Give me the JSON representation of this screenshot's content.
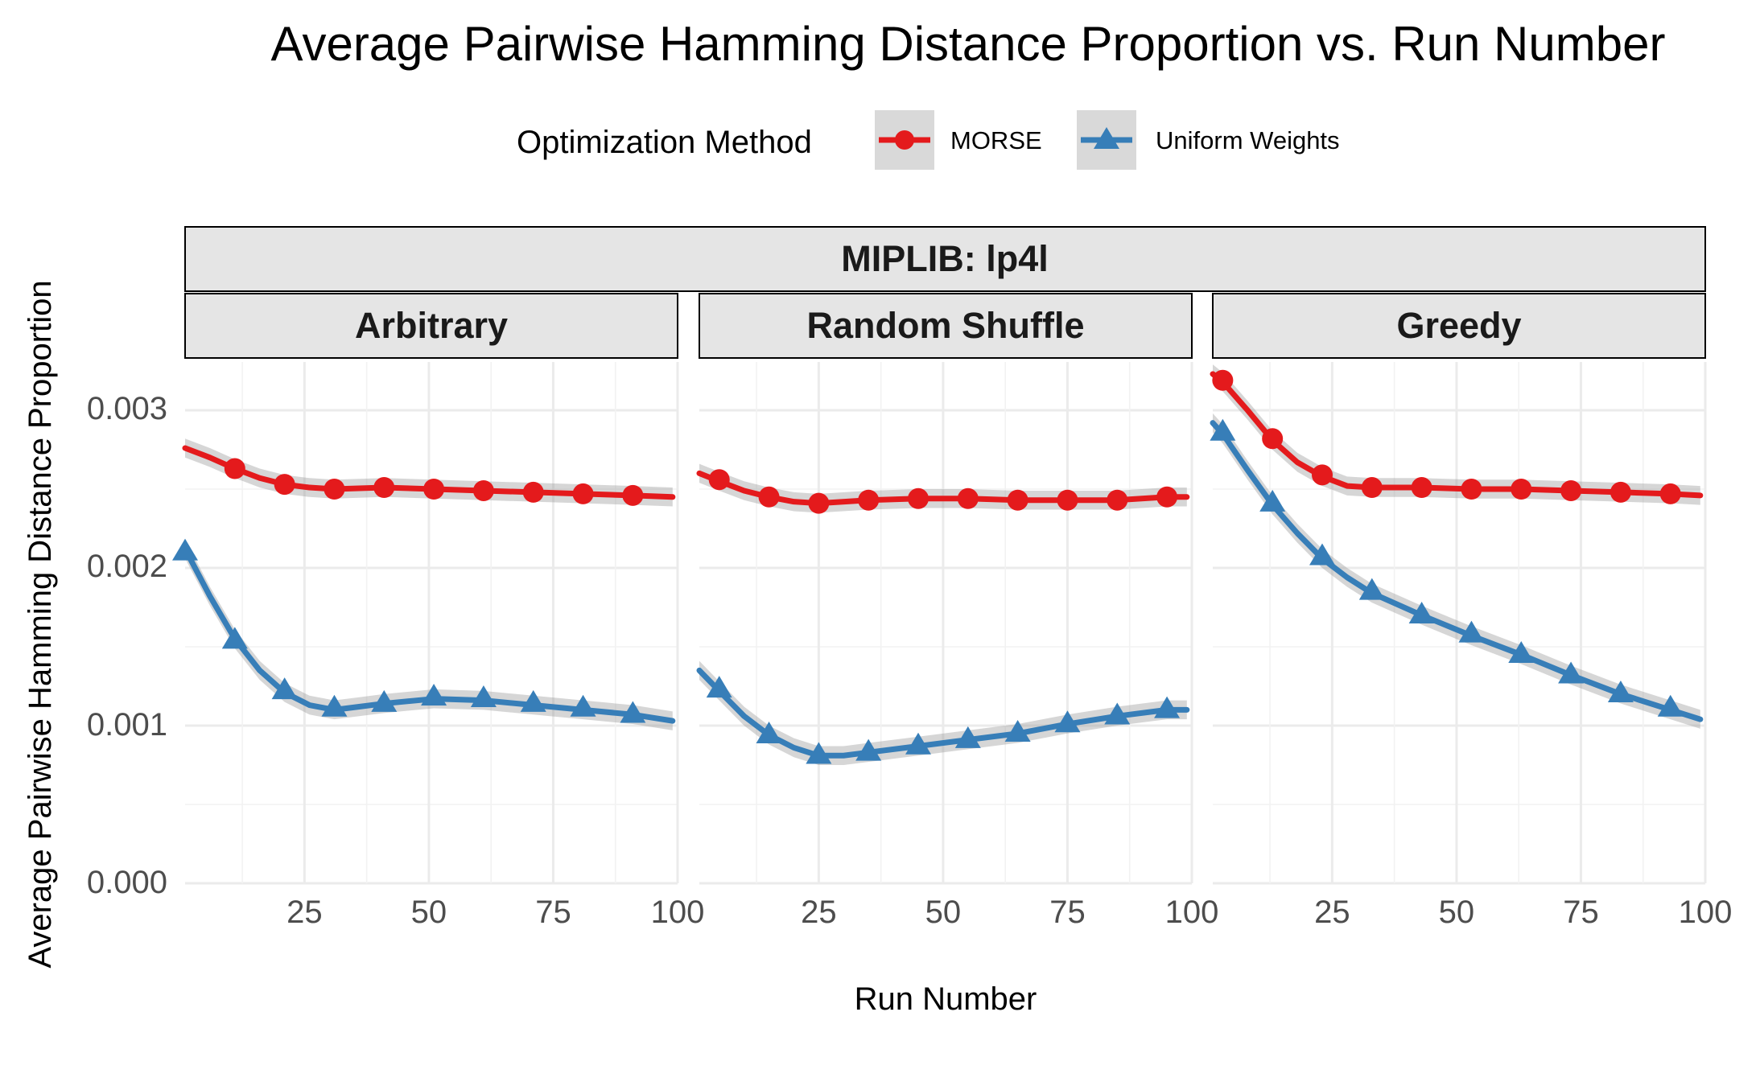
{
  "chart_data": {
    "type": "line",
    "title": "Average Pairwise Hamming Distance Proportion vs. Run Number",
    "xlabel": "Run Number",
    "ylabel": "Average Pairwise Hamming Distance Proportion",
    "facet_title": "MIPLIB: lp4l",
    "xlim": [
      1,
      100
    ],
    "ylim": [
      0,
      0.003
    ],
    "x_ticks": [
      25,
      50,
      75,
      100
    ],
    "y_ticks": [
      "0.000",
      "0.001",
      "0.002",
      "0.003"
    ],
    "grid": true,
    "legend": {
      "title": "Optimization Method",
      "placement": "top",
      "entries": [
        {
          "name": "MORSE",
          "color": "#e41a1c",
          "marker": "circle"
        },
        {
          "name": "Uniform Weights",
          "color": "#377eb8",
          "marker": "triangle"
        }
      ]
    },
    "panels": [
      {
        "title": "Arbitrary",
        "series": [
          {
            "name": "MORSE",
            "points": [
              [
                11,
                0.00263
              ],
              [
                21,
                0.00253
              ],
              [
                31,
                0.0025
              ],
              [
                41,
                0.00251
              ],
              [
                51,
                0.0025
              ],
              [
                61,
                0.00249
              ],
              [
                71,
                0.00248
              ],
              [
                81,
                0.00247
              ],
              [
                91,
                0.00246
              ]
            ],
            "smooth": [
              [
                1,
                0.00276
              ],
              [
                6,
                0.0027
              ],
              [
                11,
                0.00263
              ],
              [
                16,
                0.00257
              ],
              [
                21,
                0.00253
              ],
              [
                26,
                0.00251
              ],
              [
                31,
                0.0025
              ],
              [
                41,
                0.00251
              ],
              [
                51,
                0.0025
              ],
              [
                61,
                0.00249
              ],
              [
                71,
                0.00248
              ],
              [
                81,
                0.00247
              ],
              [
                91,
                0.00246
              ],
              [
                99,
                0.00245
              ]
            ]
          },
          {
            "name": "Uniform Weights",
            "points": [
              [
                1,
                0.0021
              ],
              [
                11,
                0.00154
              ],
              [
                21,
                0.00122
              ],
              [
                31,
                0.00111
              ],
              [
                41,
                0.00114
              ],
              [
                51,
                0.00118
              ],
              [
                61,
                0.00117
              ],
              [
                71,
                0.00114
              ],
              [
                81,
                0.00111
              ],
              [
                91,
                0.00107
              ]
            ],
            "smooth": [
              [
                1,
                0.00212
              ],
              [
                6,
                0.00182
              ],
              [
                11,
                0.00155
              ],
              [
                16,
                0.00135
              ],
              [
                21,
                0.00121
              ],
              [
                26,
                0.00113
              ],
              [
                31,
                0.0011
              ],
              [
                36,
                0.00112
              ],
              [
                41,
                0.00114
              ],
              [
                51,
                0.00117
              ],
              [
                61,
                0.00116
              ],
              [
                71,
                0.00113
              ],
              [
                81,
                0.0011
              ],
              [
                91,
                0.00107
              ],
              [
                99,
                0.00103
              ]
            ]
          }
        ]
      },
      {
        "title": "Random Shuffle",
        "series": [
          {
            "name": "MORSE",
            "points": [
              [
                5,
                0.00256
              ],
              [
                15,
                0.00245
              ],
              [
                25,
                0.00241
              ],
              [
                35,
                0.00243
              ],
              [
                45,
                0.00244
              ],
              [
                55,
                0.00244
              ],
              [
                65,
                0.00243
              ],
              [
                75,
                0.00243
              ],
              [
                85,
                0.00243
              ],
              [
                95,
                0.00245
              ]
            ],
            "smooth": [
              [
                1,
                0.0026
              ],
              [
                5,
                0.00255
              ],
              [
                10,
                0.00249
              ],
              [
                15,
                0.00245
              ],
              [
                20,
                0.00242
              ],
              [
                25,
                0.00241
              ],
              [
                35,
                0.00243
              ],
              [
                45,
                0.00244
              ],
              [
                55,
                0.00244
              ],
              [
                65,
                0.00243
              ],
              [
                75,
                0.00243
              ],
              [
                85,
                0.00243
              ],
              [
                95,
                0.00245
              ],
              [
                99,
                0.00245
              ]
            ]
          },
          {
            "name": "Uniform Weights",
            "points": [
              [
                5,
                0.00123
              ],
              [
                15,
                0.00094
              ],
              [
                25,
                0.00081
              ],
              [
                35,
                0.00083
              ],
              [
                45,
                0.00087
              ],
              [
                55,
                0.00091
              ],
              [
                65,
                0.00095
              ],
              [
                75,
                0.00101
              ],
              [
                85,
                0.00106
              ],
              [
                95,
                0.0011
              ]
            ],
            "smooth": [
              [
                1,
                0.00135
              ],
              [
                5,
                0.00122
              ],
              [
                10,
                0.00106
              ],
              [
                15,
                0.00094
              ],
              [
                20,
                0.00086
              ],
              [
                25,
                0.00081
              ],
              [
                30,
                0.00081
              ],
              [
                35,
                0.00083
              ],
              [
                45,
                0.00087
              ],
              [
                55,
                0.00091
              ],
              [
                65,
                0.00095
              ],
              [
                75,
                0.00101
              ],
              [
                85,
                0.00106
              ],
              [
                95,
                0.0011
              ],
              [
                99,
                0.0011
              ]
            ]
          }
        ]
      },
      {
        "title": "Greedy",
        "series": [
          {
            "name": "MORSE",
            "points": [
              [
                3,
                0.00319
              ],
              [
                13,
                0.00282
              ],
              [
                23,
                0.00259
              ],
              [
                33,
                0.00251
              ],
              [
                43,
                0.00251
              ],
              [
                53,
                0.0025
              ],
              [
                63,
                0.0025
              ],
              [
                73,
                0.00249
              ],
              [
                83,
                0.00248
              ],
              [
                93,
                0.00247
              ]
            ],
            "smooth": [
              [
                1,
                0.00323
              ],
              [
                3,
                0.00318
              ],
              [
                8,
                0.003
              ],
              [
                13,
                0.00281
              ],
              [
                18,
                0.00267
              ],
              [
                23,
                0.00258
              ],
              [
                28,
                0.00252
              ],
              [
                33,
                0.00251
              ],
              [
                43,
                0.00251
              ],
              [
                53,
                0.0025
              ],
              [
                63,
                0.0025
              ],
              [
                73,
                0.00249
              ],
              [
                83,
                0.00248
              ],
              [
                93,
                0.00247
              ],
              [
                99,
                0.00246
              ]
            ]
          },
          {
            "name": "Uniform Weights",
            "points": [
              [
                3,
                0.00286
              ],
              [
                13,
                0.00241
              ],
              [
                23,
                0.00207
              ],
              [
                33,
                0.00185
              ],
              [
                43,
                0.0017
              ],
              [
                53,
                0.00158
              ],
              [
                63,
                0.00145
              ],
              [
                73,
                0.00132
              ],
              [
                83,
                0.0012
              ],
              [
                93,
                0.00111
              ]
            ],
            "smooth": [
              [
                1,
                0.00292
              ],
              [
                3,
                0.00285
              ],
              [
                8,
                0.00262
              ],
              [
                13,
                0.0024
              ],
              [
                18,
                0.00222
              ],
              [
                23,
                0.00206
              ],
              [
                28,
                0.00194
              ],
              [
                33,
                0.00184
              ],
              [
                43,
                0.0017
              ],
              [
                53,
                0.00157
              ],
              [
                63,
                0.00145
              ],
              [
                73,
                0.00132
              ],
              [
                83,
                0.0012
              ],
              [
                93,
                0.0011
              ],
              [
                99,
                0.00104
              ]
            ]
          }
        ]
      }
    ]
  }
}
